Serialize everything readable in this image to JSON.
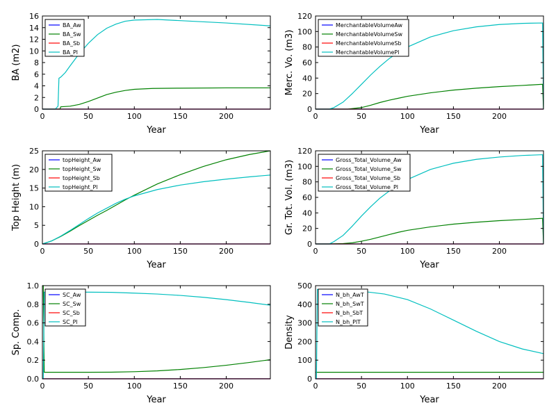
{
  "colors": {
    "Aw": "#0000ff",
    "Sw": "#008000",
    "Sb": "#ff0000",
    "Pl": "#00bfbf"
  },
  "chart_data": [
    {
      "type": "line",
      "ylabel": "BA (m2)",
      "xlabel": "Year",
      "xlim": [
        0,
        248
      ],
      "ylim": [
        0,
        16
      ],
      "xticks": [
        0,
        50,
        100,
        150,
        200
      ],
      "yticks": [
        0,
        2,
        4,
        6,
        8,
        10,
        12,
        14,
        16
      ],
      "legend_position": "top-left",
      "series": [
        {
          "name": "BA_Aw",
          "color_key": "Aw",
          "points": [
            [
              0,
              0
            ],
            [
              248,
              0
            ]
          ]
        },
        {
          "name": "BA_Sw",
          "color_key": "Sw",
          "points": [
            [
              0,
              0
            ],
            [
              19,
              0
            ],
            [
              20,
              0.4
            ],
            [
              30,
              0.5
            ],
            [
              40,
              0.8
            ],
            [
              50,
              1.3
            ],
            [
              60,
              1.9
            ],
            [
              70,
              2.5
            ],
            [
              80,
              2.9
            ],
            [
              90,
              3.2
            ],
            [
              100,
              3.4
            ],
            [
              120,
              3.55
            ],
            [
              150,
              3.6
            ],
            [
              200,
              3.65
            ],
            [
              248,
              3.65
            ]
          ]
        },
        {
          "name": "BA_Sb",
          "color_key": "Sb",
          "points": [
            [
              0,
              0
            ],
            [
              248,
              0
            ]
          ]
        },
        {
          "name": "BA_Pl",
          "color_key": "Pl",
          "points": [
            [
              0,
              0
            ],
            [
              14,
              0
            ],
            [
              17,
              0.5
            ],
            [
              18,
              5.3
            ],
            [
              20,
              5.5
            ],
            [
              25,
              6.3
            ],
            [
              30,
              7.4
            ],
            [
              40,
              9.5
            ],
            [
              50,
              11.3
            ],
            [
              60,
              12.8
            ],
            [
              70,
              13.9
            ],
            [
              80,
              14.6
            ],
            [
              90,
              15.1
            ],
            [
              100,
              15.3
            ],
            [
              125,
              15.4
            ],
            [
              150,
              15.2
            ],
            [
              200,
              14.8
            ],
            [
              248,
              14.3
            ]
          ]
        }
      ]
    },
    {
      "type": "line",
      "ylabel": "Merc. Vo. (m3)",
      "xlabel": "Year",
      "xlim": [
        0,
        248
      ],
      "ylim": [
        0,
        120
      ],
      "xticks": [
        0,
        50,
        100,
        150,
        200
      ],
      "yticks": [
        0,
        20,
        40,
        60,
        80,
        100,
        120
      ],
      "legend_position": "top-left",
      "series": [
        {
          "name": "MerchantableVolumeAw",
          "color_key": "Aw",
          "points": [
            [
              0,
              0
            ],
            [
              248,
              0
            ]
          ]
        },
        {
          "name": "MerchantableVolumeSw",
          "color_key": "Sw",
          "points": [
            [
              0,
              0
            ],
            [
              35,
              0
            ],
            [
              50,
              2
            ],
            [
              60,
              5
            ],
            [
              70,
              8.5
            ],
            [
              80,
              11.5
            ],
            [
              90,
              14
            ],
            [
              100,
              16.5
            ],
            [
              125,
              21
            ],
            [
              150,
              24.5
            ],
            [
              175,
              27
            ],
            [
              200,
              29
            ],
            [
              225,
              30.5
            ],
            [
              247,
              32
            ],
            [
              248,
              0
            ]
          ]
        },
        {
          "name": "MerchantableVolumeSb",
          "color_key": "Sb",
          "points": [
            [
              0,
              0
            ],
            [
              248,
              0
            ]
          ]
        },
        {
          "name": "MerchantableVolumePl",
          "color_key": "Pl",
          "points": [
            [
              0,
              0
            ],
            [
              15,
              0
            ],
            [
              20,
              2
            ],
            [
              30,
              9
            ],
            [
              40,
              20
            ],
            [
              50,
              32
            ],
            [
              60,
              44
            ],
            [
              70,
              55
            ],
            [
              80,
              65
            ],
            [
              90,
              73
            ],
            [
              100,
              80
            ],
            [
              125,
              93
            ],
            [
              150,
              101
            ],
            [
              175,
              106
            ],
            [
              200,
              109
            ],
            [
              225,
              110.5
            ],
            [
              247,
              111
            ],
            [
              248,
              0
            ]
          ]
        }
      ]
    },
    {
      "type": "line",
      "ylabel": "Top Height (m)",
      "xlabel": "Year",
      "xlim": [
        0,
        248
      ],
      "ylim": [
        0,
        25
      ],
      "xticks": [
        0,
        50,
        100,
        150,
        200
      ],
      "yticks": [
        0,
        5,
        10,
        15,
        20,
        25
      ],
      "legend_position": "top-left",
      "series": [
        {
          "name": "topHeight_Aw",
          "color_key": "Aw",
          "points": [
            [
              0,
              0
            ],
            [
              248,
              0
            ]
          ]
        },
        {
          "name": "topHeight_Sw",
          "color_key": "Sw",
          "points": [
            [
              0,
              0
            ],
            [
              10,
              0.8
            ],
            [
              20,
              2
            ],
            [
              30,
              3.4
            ],
            [
              40,
              4.9
            ],
            [
              50,
              6.3
            ],
            [
              60,
              7.7
            ],
            [
              70,
              9
            ],
            [
              80,
              10.4
            ],
            [
              90,
              11.8
            ],
            [
              100,
              13.1
            ],
            [
              125,
              16.1
            ],
            [
              150,
              18.6
            ],
            [
              175,
              20.8
            ],
            [
              200,
              22.6
            ],
            [
              225,
              24
            ],
            [
              248,
              25
            ]
          ]
        },
        {
          "name": "topHeight_Sb",
          "color_key": "Sb",
          "points": [
            [
              0,
              0
            ],
            [
              248,
              0
            ]
          ]
        },
        {
          "name": "topHeight_Pl",
          "color_key": "Pl",
          "points": [
            [
              0,
              0
            ],
            [
              10,
              0.8
            ],
            [
              20,
              2.1
            ],
            [
              30,
              3.6
            ],
            [
              40,
              5.2
            ],
            [
              50,
              6.8
            ],
            [
              60,
              8.3
            ],
            [
              70,
              9.6
            ],
            [
              80,
              10.9
            ],
            [
              90,
              12
            ],
            [
              100,
              12.9
            ],
            [
              125,
              14.6
            ],
            [
              150,
              15.8
            ],
            [
              175,
              16.7
            ],
            [
              200,
              17.4
            ],
            [
              225,
              18
            ],
            [
              248,
              18.5
            ]
          ]
        }
      ]
    },
    {
      "type": "line",
      "ylabel": "Gr. Tot. Vol. (m3)",
      "xlabel": "Year",
      "xlim": [
        0,
        248
      ],
      "ylim": [
        0,
        120
      ],
      "xticks": [
        0,
        50,
        100,
        150,
        200
      ],
      "yticks": [
        0,
        20,
        40,
        60,
        80,
        100,
        120
      ],
      "legend_position": "top-left",
      "series": [
        {
          "name": "Gross_Total_Volume_Aw",
          "color_key": "Aw",
          "points": [
            [
              0,
              0
            ],
            [
              248,
              0
            ]
          ]
        },
        {
          "name": "Gross_Total_Volume_Sw",
          "color_key": "Sw",
          "points": [
            [
              0,
              0
            ],
            [
              15,
              0
            ],
            [
              30,
              0.5
            ],
            [
              40,
              1.5
            ],
            [
              50,
              3.5
            ],
            [
              60,
              6
            ],
            [
              70,
              9
            ],
            [
              80,
              12
            ],
            [
              90,
              15
            ],
            [
              100,
              17.5
            ],
            [
              125,
              22
            ],
            [
              150,
              25.5
            ],
            [
              175,
              28
            ],
            [
              200,
              30
            ],
            [
              225,
              31.5
            ],
            [
              247,
              33
            ],
            [
              248,
              0
            ]
          ]
        },
        {
          "name": "Gross_Total_Volume_Sb",
          "color_key": "Sb",
          "points": [
            [
              0,
              0
            ],
            [
              248,
              0
            ]
          ]
        },
        {
          "name": "Gross_Total_Volume_Pl",
          "color_key": "Pl",
          "points": [
            [
              0,
              0
            ],
            [
              15,
              0
            ],
            [
              20,
              3
            ],
            [
              30,
              11
            ],
            [
              40,
              23
            ],
            [
              50,
              36
            ],
            [
              60,
              48
            ],
            [
              70,
              59
            ],
            [
              80,
              68
            ],
            [
              90,
              76
            ],
            [
              100,
              83
            ],
            [
              125,
              96
            ],
            [
              150,
              104
            ],
            [
              175,
              109
            ],
            [
              200,
              112
            ],
            [
              225,
              114
            ],
            [
              247,
              115
            ],
            [
              248,
              0
            ]
          ]
        }
      ]
    },
    {
      "type": "line",
      "ylabel": "Sp. Comp.",
      "xlabel": "Year",
      "xlim": [
        0,
        248
      ],
      "ylim": [
        0,
        1.0
      ],
      "xticks": [
        0,
        50,
        100,
        150,
        200
      ],
      "yticks": [
        0.0,
        0.2,
        0.4,
        0.6,
        0.8,
        1.0
      ],
      "tick_decimals": 1,
      "legend_position": "top-left",
      "series": [
        {
          "name": "SC_Aw",
          "color_key": "Aw",
          "points": [
            [
              0,
              0
            ],
            [
              248,
              0
            ]
          ]
        },
        {
          "name": "SC_Sw",
          "color_key": "Sw",
          "points": [
            [
              0,
              1.0
            ],
            [
              1,
              1.0
            ],
            [
              2,
              0.07
            ],
            [
              50,
              0.07
            ],
            [
              75,
              0.071
            ],
            [
              100,
              0.076
            ],
            [
              125,
              0.085
            ],
            [
              150,
              0.1
            ],
            [
              175,
              0.12
            ],
            [
              200,
              0.145
            ],
            [
              225,
              0.175
            ],
            [
              248,
              0.205
            ]
          ]
        },
        {
          "name": "SC_Sb",
          "color_key": "Sb",
          "points": [
            [
              0,
              0
            ],
            [
              248,
              0
            ]
          ]
        },
        {
          "name": "SC_Pl",
          "color_key": "Pl",
          "points": [
            [
              0,
              0
            ],
            [
              1,
              0
            ],
            [
              2,
              0.93
            ],
            [
              50,
              0.93
            ],
            [
              75,
              0.928
            ],
            [
              100,
              0.92
            ],
            [
              125,
              0.91
            ],
            [
              150,
              0.895
            ],
            [
              175,
              0.875
            ],
            [
              200,
              0.85
            ],
            [
              225,
              0.82
            ],
            [
              248,
              0.79
            ]
          ]
        }
      ]
    },
    {
      "type": "line",
      "ylabel": "Density",
      "xlabel": "Year",
      "xlim": [
        0,
        248
      ],
      "ylim": [
        0,
        500
      ],
      "xticks": [
        0,
        50,
        100,
        150,
        200
      ],
      "yticks": [
        0,
        100,
        200,
        300,
        400,
        500
      ],
      "legend_position": "top-left",
      "series": [
        {
          "name": "N_bh_AwT",
          "color_key": "Aw",
          "points": [
            [
              0,
              0
            ],
            [
              248,
              0
            ]
          ]
        },
        {
          "name": "N_bh_SwT",
          "color_key": "Sw",
          "points": [
            [
              0,
              35
            ],
            [
              248,
              35
            ]
          ]
        },
        {
          "name": "N_bh_SbT",
          "color_key": "Sb",
          "points": [
            [
              0,
              0
            ],
            [
              248,
              0
            ]
          ]
        },
        {
          "name": "N_bh_PlT",
          "color_key": "Pl",
          "points": [
            [
              0,
              0
            ],
            [
              1,
              0
            ],
            [
              2,
              480
            ],
            [
              25,
              478
            ],
            [
              50,
              470
            ],
            [
              75,
              455
            ],
            [
              100,
              425
            ],
            [
              125,
              375
            ],
            [
              150,
              315
            ],
            [
              175,
              255
            ],
            [
              200,
              200
            ],
            [
              225,
              160
            ],
            [
              248,
              135
            ]
          ]
        }
      ]
    }
  ]
}
